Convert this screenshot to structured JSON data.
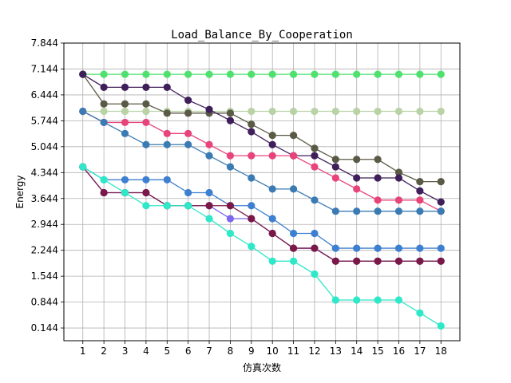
{
  "chart_data": {
    "type": "line",
    "title": "Load_Balance_By_Cooperation",
    "xlabel": "仿真次数",
    "ylabel": "Energy",
    "x": [
      1,
      2,
      3,
      4,
      5,
      6,
      7,
      8,
      9,
      10,
      11,
      12,
      13,
      14,
      15,
      16,
      17,
      18
    ],
    "x_ticks": [
      "1",
      "2",
      "3",
      "4",
      "5",
      "6",
      "7",
      "8",
      "9",
      "10",
      "11",
      "12",
      "13",
      "14",
      "15",
      "16",
      "17",
      "18"
    ],
    "y_ticks": [
      "0.144",
      "0.844",
      "1.544",
      "2.244",
      "2.944",
      "3.644",
      "4.344",
      "5.044",
      "5.744",
      "6.444",
      "7.144",
      "7.844"
    ],
    "xlim": [
      0.1,
      18.9
    ],
    "ylim": [
      -0.2,
      7.844
    ],
    "grid": true,
    "series": [
      {
        "color": "#4fe06e",
        "values": [
          7.0,
          7.0,
          7.0,
          7.0,
          7.0,
          7.0,
          7.0,
          7.0,
          7.0,
          7.0,
          7.0,
          7.0,
          7.0,
          7.0,
          7.0,
          7.0,
          7.0,
          7.0
        ]
      },
      {
        "color": "#b9d3a6",
        "values": [
          6.0,
          6.0,
          6.0,
          6.0,
          6.0,
          6.0,
          6.0,
          6.0,
          6.0,
          6.0,
          6.0,
          6.0,
          6.0,
          6.0,
          6.0,
          6.0,
          6.0,
          6.0
        ]
      },
      {
        "color": "#5a5a46",
        "values": [
          7.0,
          6.2,
          6.2,
          6.2,
          5.95,
          5.95,
          5.95,
          5.95,
          5.65,
          5.35,
          5.35,
          5.0,
          4.7,
          4.7,
          4.7,
          4.35,
          4.1,
          4.1
        ]
      },
      {
        "color": "#3f1f5a",
        "values": [
          7.0,
          6.65,
          6.65,
          6.65,
          6.65,
          6.3,
          6.05,
          5.75,
          5.45,
          5.1,
          4.8,
          4.8,
          4.5,
          4.2,
          4.2,
          4.2,
          3.85,
          3.55
        ]
      },
      {
        "color": "#e8447a",
        "values": [
          6.0,
          5.7,
          5.7,
          5.7,
          5.4,
          5.4,
          5.1,
          4.8,
          4.8,
          4.8,
          4.8,
          4.5,
          4.2,
          3.9,
          3.6,
          3.6,
          3.6,
          3.3
        ]
      },
      {
        "color": "#3b7bb4",
        "values": [
          6.0,
          5.7,
          5.4,
          5.1,
          5.1,
          5.1,
          4.8,
          4.5,
          4.2,
          3.9,
          3.9,
          3.6,
          3.3,
          3.3,
          3.3,
          3.3,
          3.3,
          3.3
        ]
      },
      {
        "color": "#3d7fd0",
        "values": [
          4.5,
          4.15,
          4.15,
          4.15,
          4.15,
          3.8,
          3.8,
          3.45,
          3.45,
          3.1,
          2.7,
          2.7,
          2.3,
          2.3,
          2.3,
          2.3,
          2.3,
          2.3
        ]
      },
      {
        "color": "#7b68ee",
        "values": [
          4.5,
          3.8,
          3.8,
          3.8,
          3.45,
          3.45,
          3.45,
          3.1,
          3.1,
          2.7,
          2.3,
          2.3,
          1.95,
          1.95,
          1.95,
          1.95,
          1.95,
          1.95
        ]
      },
      {
        "color": "#7a1848",
        "values": [
          4.5,
          3.8,
          3.8,
          3.8,
          3.45,
          3.45,
          3.45,
          3.45,
          3.1,
          2.7,
          2.3,
          2.3,
          1.95,
          1.95,
          1.95,
          1.95,
          1.95,
          1.95
        ]
      },
      {
        "color": "#2ee8c8",
        "values": [
          4.5,
          4.15,
          3.8,
          3.45,
          3.45,
          3.45,
          3.1,
          2.7,
          2.35,
          1.95,
          1.95,
          1.6,
          0.9,
          0.9,
          0.9,
          0.9,
          0.55,
          0.2
        ]
      }
    ]
  }
}
